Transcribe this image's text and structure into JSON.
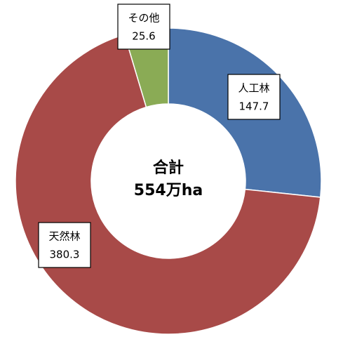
{
  "chart_data": {
    "type": "donut",
    "categories": [
      "人工林",
      "天然林",
      "その他"
    ],
    "values": [
      147.7,
      380.3,
      25.6
    ],
    "colors": [
      "#4a73aa",
      "#a84a48",
      "#8aab55"
    ],
    "center_text": [
      "合計",
      "554万ha"
    ]
  }
}
